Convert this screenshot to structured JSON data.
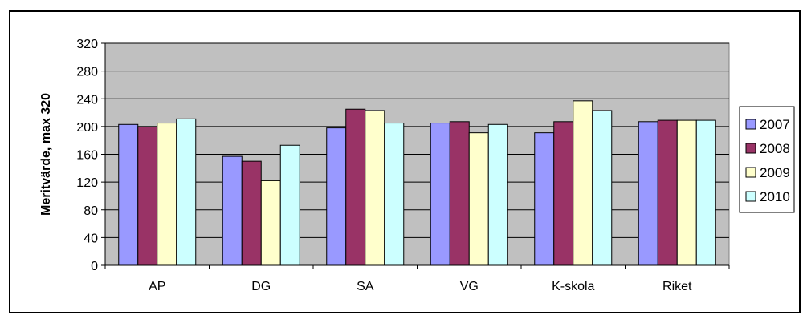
{
  "chart_data": {
    "type": "bar",
    "categories": [
      "AP",
      "DG",
      "SA",
      "VG",
      "K-skola",
      "Riket"
    ],
    "series": [
      {
        "name": "2007",
        "values": [
          203,
          157,
          198,
          205,
          191,
          207
        ]
      },
      {
        "name": "2008",
        "values": [
          200,
          150,
          225,
          207,
          207,
          209
        ]
      },
      {
        "name": "2009",
        "values": [
          205,
          122,
          223,
          191,
          237,
          209
        ]
      },
      {
        "name": "2010",
        "values": [
          211,
          173,
          205,
          203,
          223,
          209
        ]
      }
    ],
    "ylabel": "Meritvärde, max 320",
    "ylim": [
      0,
      320
    ],
    "yticks": [
      0,
      40,
      80,
      120,
      160,
      200,
      240,
      280,
      320
    ],
    "grid": true,
    "legend": "right",
    "colors": [
      "#9999ff",
      "#993366",
      "#ffffcc",
      "#ccffff"
    ],
    "plot_background": "#c0c0c0"
  }
}
